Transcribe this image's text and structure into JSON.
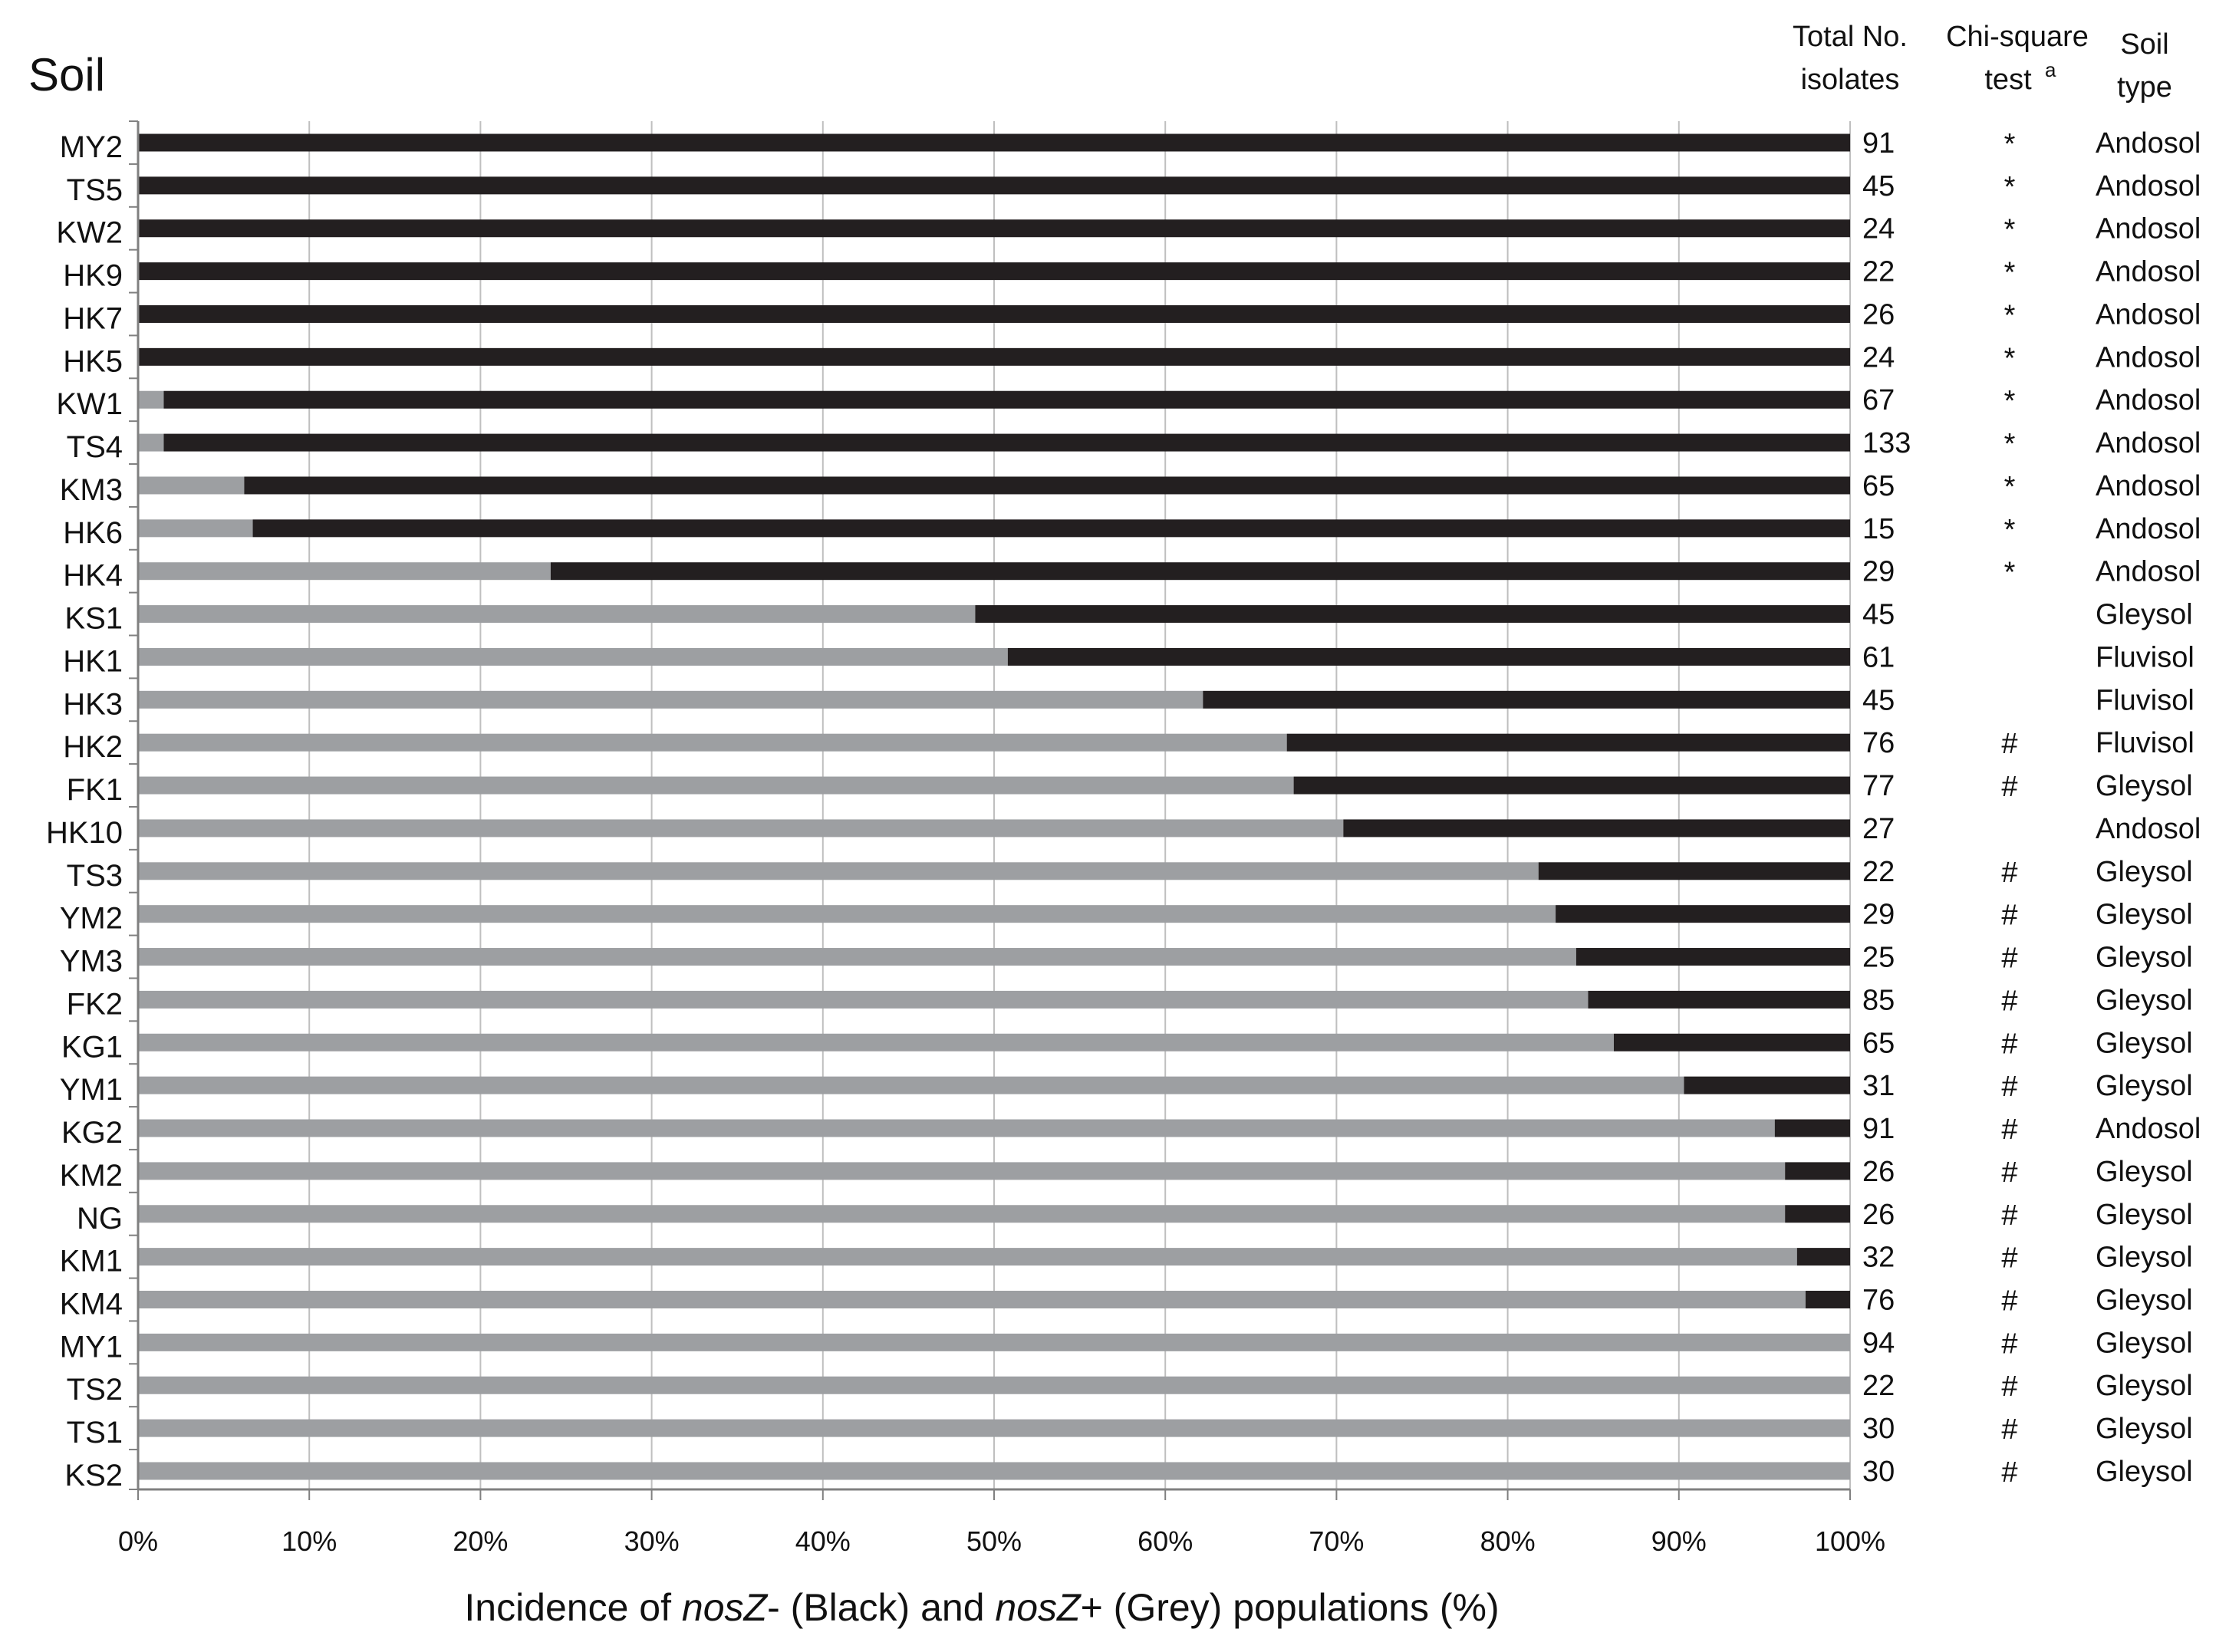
{
  "chart_data": {
    "type": "bar",
    "orientation": "horizontal",
    "stacked": true,
    "title": "Soil",
    "xlabel_parts": [
      {
        "text": "Incidence of ",
        "italic": false
      },
      {
        "text": "nosZ",
        "italic": true
      },
      {
        "text": "- (Black) and ",
        "italic": false
      },
      {
        "text": "nosZ",
        "italic": true
      },
      {
        "text": "+ (Grey) populations (%)",
        "italic": false
      }
    ],
    "xlim": [
      0,
      100
    ],
    "xticks": [
      "0%",
      "10%",
      "20%",
      "30%",
      "40%",
      "50%",
      "60%",
      "70%",
      "80%",
      "90%",
      "100%"
    ],
    "grid": "vertical",
    "column_headers": {
      "total": [
        "Total No.",
        "isolates"
      ],
      "chi": [
        "Chi-square",
        "test"
      ],
      "chi_sup": "a",
      "soil_type": [
        "Soil",
        "type"
      ]
    },
    "colors": {
      "nosZ_minus": "#231f20",
      "nosZ_plus": "#9d9fa2",
      "grid": "#bfbfbf",
      "axis": "#808080"
    },
    "categories": [
      "MY2",
      "TS5",
      "KW2",
      "HK9",
      "HK7",
      "HK5",
      "KW1",
      "TS4",
      "KM3",
      "HK6",
      "HK4",
      "KS1",
      "HK1",
      "HK3",
      "HK2",
      "FK1",
      "HK10",
      "TS3",
      "YM2",
      "YM3",
      "FK2",
      "KG1",
      "YM1",
      "KG2",
      "KM2",
      "NG",
      "KM1",
      "KM4",
      "MY1",
      "TS2",
      "TS1",
      "KS2"
    ],
    "grey_percent": [
      0,
      0,
      0,
      0,
      0,
      0,
      1.5,
      1.5,
      6.2,
      6.7,
      24.1,
      48.9,
      50.8,
      62.2,
      67.1,
      67.5,
      70.4,
      81.8,
      82.8,
      84.0,
      84.7,
      86.2,
      90.3,
      95.6,
      96.2,
      96.2,
      96.9,
      97.4,
      100,
      100,
      100,
      100
    ],
    "total_isolates": [
      "91",
      "45",
      "24",
      "22",
      "26",
      "24",
      "67",
      "133",
      "65",
      "15",
      "29",
      "45",
      "61",
      "45",
      "76",
      "77",
      "27",
      "22",
      "29",
      "25",
      "85",
      "65",
      "31",
      "91",
      "26",
      "26",
      "32",
      "76",
      "94",
      "22",
      "30",
      "30"
    ],
    "chi_square": [
      "*",
      "*",
      "*",
      "*",
      "*",
      "*",
      "*",
      "*",
      "*",
      "*",
      "*",
      "",
      "",
      "",
      "#",
      "#",
      "",
      "#",
      "#",
      "#",
      "#",
      "#",
      "#",
      "#",
      "#",
      "#",
      "#",
      "#",
      "#",
      "#",
      "#",
      "#"
    ],
    "soil_type": [
      "Andosol",
      "Andosol",
      "Andosol",
      "Andosol",
      "Andosol",
      "Andosol",
      "Andosol",
      "Andosol",
      "Andosol",
      "Andosol",
      "Andosol",
      "Gleysol",
      "Fluvisol",
      "Fluvisol",
      "Fluvisol",
      "Gleysol",
      "Andosol",
      "Gleysol",
      "Gleysol",
      "Gleysol",
      "Gleysol",
      "Gleysol",
      "Gleysol",
      "Andosol",
      "Gleysol",
      "Gleysol",
      "Gleysol",
      "Gleysol",
      "Gleysol",
      "Gleysol",
      "Gleysol",
      "Gleysol"
    ]
  }
}
